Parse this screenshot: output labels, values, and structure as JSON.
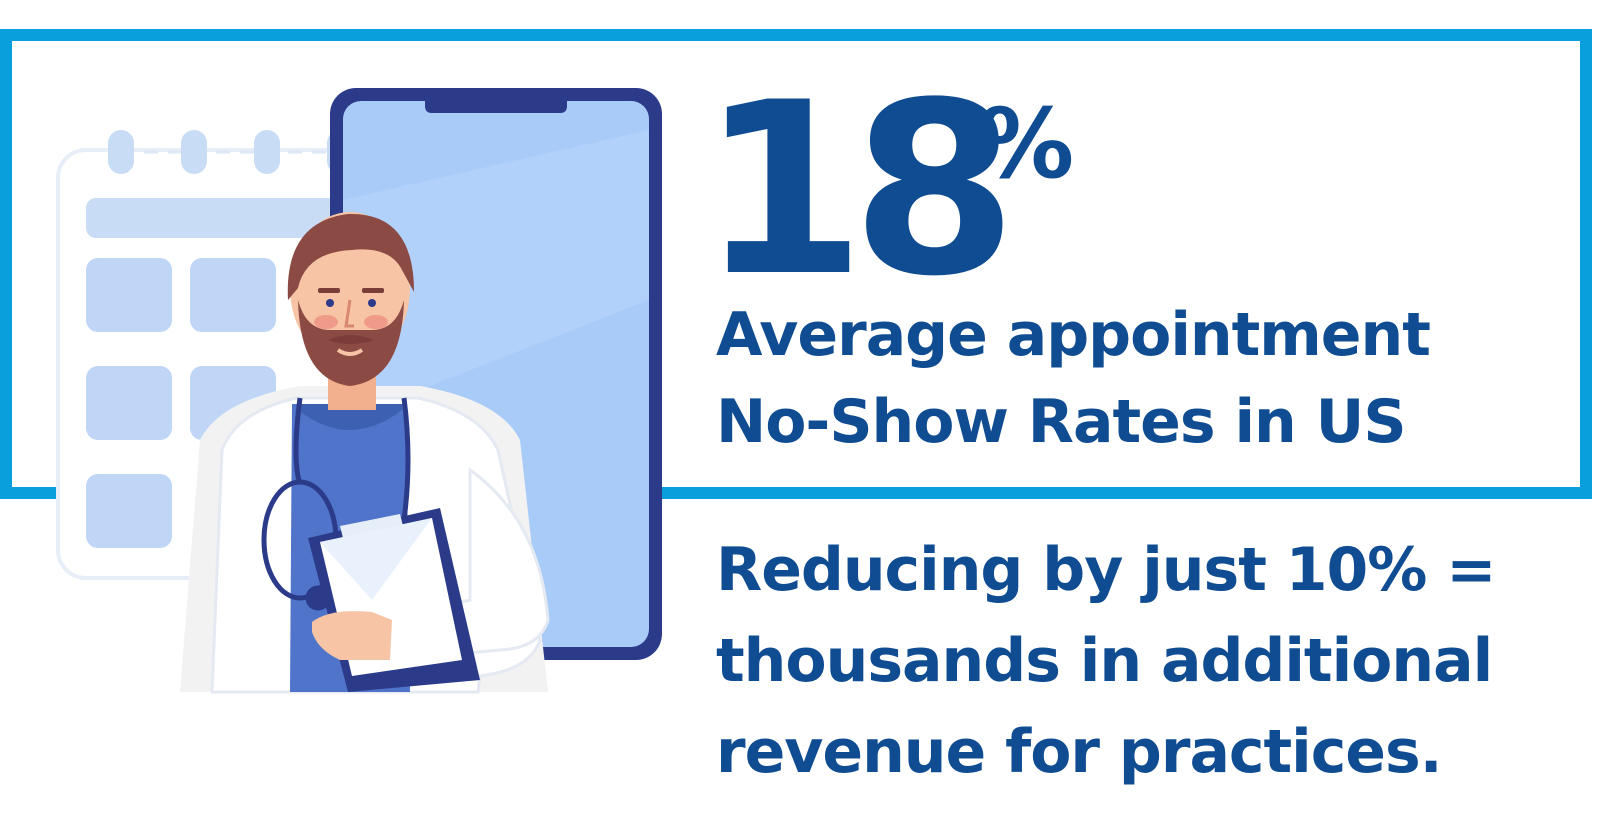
{
  "stat": {
    "number": "18",
    "suffix": "%"
  },
  "headline": {
    "line1": "Average appointment",
    "line2": "No-Show Rates in US"
  },
  "body": {
    "line1": "Reducing by just 10% =",
    "line2": "thousands in additional",
    "line3": "revenue for practices."
  },
  "colors": {
    "frame": "#089fdc",
    "text": "#0f4c92"
  },
  "illustration": {
    "icons": [
      "calendar-icon",
      "smartphone-icon",
      "doctor-icon",
      "stethoscope-icon",
      "clipboard-icon"
    ]
  }
}
